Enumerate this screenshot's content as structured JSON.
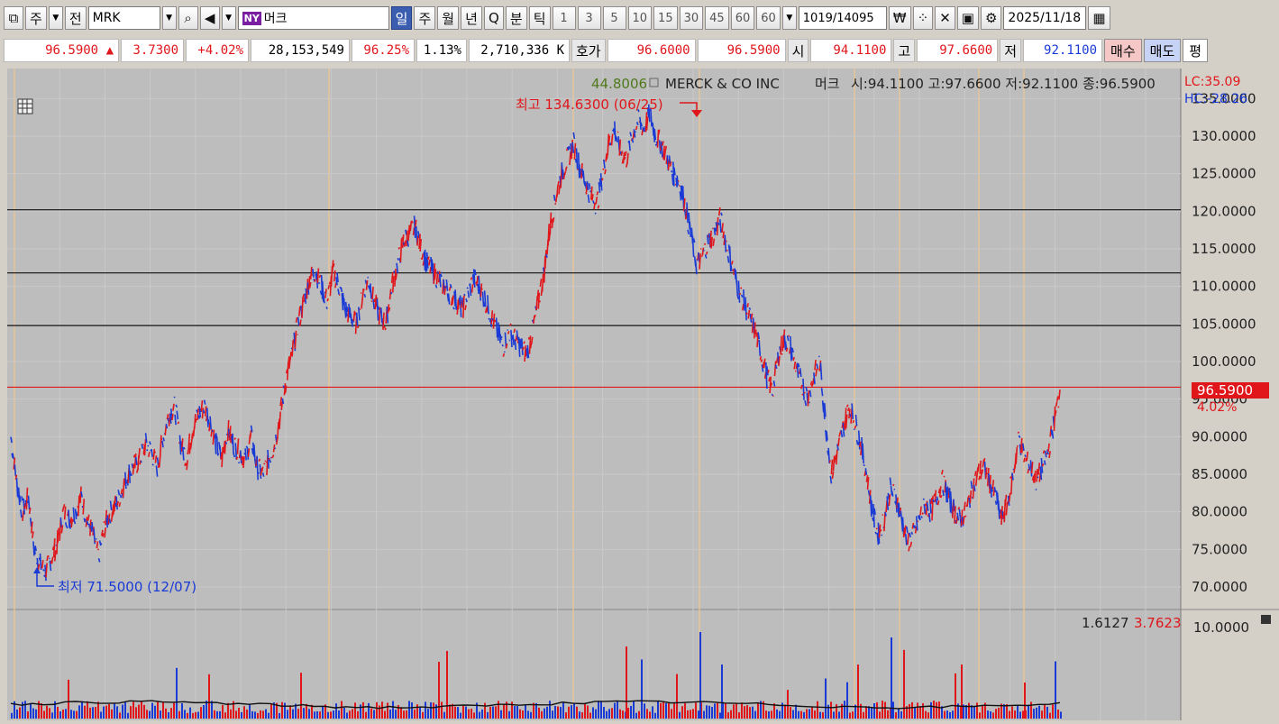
{
  "toolbar": {
    "period_type": "주",
    "prev_label": "전",
    "symbol": "MRK",
    "market_badge": "NY",
    "stock_name": "머크",
    "tabs": [
      "일",
      "주",
      "월",
      "년",
      "Q",
      "분",
      "틱"
    ],
    "intervals": [
      "1",
      "3",
      "5",
      "10",
      "15",
      "30",
      "45",
      "60",
      "60"
    ],
    "count": "1019",
    "total": "/14095",
    "currency_symbol": "₩",
    "date": "2025/11/18"
  },
  "quote": {
    "price": "96.5900",
    "change": "3.7300",
    "change_pct": "+4.02%",
    "volume": "28,153,549",
    "vol_ratio": "96.25%",
    "turnover": "1.13%",
    "amount": "2,710,336 K",
    "hoga_label": "호가",
    "ask": "96.6000",
    "bid": "96.5900",
    "open_label": "시",
    "open": "94.1100",
    "high_label": "고",
    "high": "97.6600",
    "low_label": "저",
    "low": "92.1100",
    "buy_label": "매수",
    "sell_label": "매도",
    "eval_label": "평"
  },
  "chart_info": {
    "indicator_value": "44.8006",
    "name": "MERCK & CO INC",
    "korean_name": "머크",
    "ohlc": "시:94.1100 고:97.6600 저:92.1100 종:96.5900",
    "lc": "LC:35.09",
    "hc": "HC:-28.26",
    "current_price_tag": "96.5900",
    "current_change_tag": "4.02%",
    "max_label": "최고 134.6300 (06/25)",
    "min_label": "최저 71.5000 (12/07)",
    "volume_values": "1.6127",
    "volume_values2": "3.7623",
    "volume_axis_label": "10.0000"
  },
  "colors": {
    "up": "#e0161b",
    "down": "#1a3ad6",
    "grid": "#c9c9c9",
    "bg": "#bdbdbd"
  },
  "chart_data": {
    "type": "line",
    "y_ticks": [
      "70.0000",
      "75.0000",
      "80.0000",
      "85.0000",
      "90.0000",
      "95.0000",
      "100.0000",
      "105.0000",
      "110.0000",
      "115.0000",
      "120.0000",
      "125.0000",
      "130.0000",
      "135.0000"
    ],
    "ylim": [
      67,
      139
    ],
    "horizontal_lines": [
      120.2,
      111.8,
      104.8,
      96.59
    ],
    "closes": [
      90,
      84,
      80,
      82,
      75,
      73,
      72,
      74,
      76,
      80,
      79,
      80,
      82,
      79,
      77,
      74,
      78,
      80,
      81,
      83,
      85,
      86,
      87,
      89,
      88,
      86,
      90,
      93,
      94,
      89,
      87,
      91,
      93,
      94,
      92,
      89,
      87,
      91,
      89,
      88,
      87,
      90,
      86,
      85,
      87,
      89,
      93,
      98,
      101,
      105,
      108,
      111,
      112,
      110,
      108,
      112,
      110,
      107,
      106,
      105,
      109,
      111,
      108,
      106,
      105,
      110,
      113,
      116,
      117,
      118,
      115,
      113,
      112,
      111,
      110,
      109,
      108,
      107,
      109,
      111,
      110,
      108,
      106,
      104,
      102,
      104,
      103,
      102,
      101,
      104,
      108,
      112,
      118,
      122,
      125,
      127,
      129,
      126,
      124,
      122,
      121,
      125,
      129,
      131,
      128,
      127,
      130,
      132,
      131,
      133,
      130,
      129,
      127,
      125,
      124,
      121,
      117,
      113,
      114,
      116,
      117,
      119,
      116,
      113,
      110,
      108,
      106,
      104,
      101,
      98,
      96,
      101,
      103,
      102,
      99,
      97,
      95,
      98,
      100,
      92,
      85,
      88,
      91,
      94,
      92,
      89,
      85,
      80,
      77,
      79,
      83,
      82,
      79,
      76,
      77,
      79,
      81,
      80,
      82,
      84,
      82,
      80,
      79,
      80,
      83,
      85,
      86,
      84,
      82,
      79,
      81,
      85,
      90,
      87,
      86,
      84,
      86,
      88,
      92,
      96
    ]
  }
}
